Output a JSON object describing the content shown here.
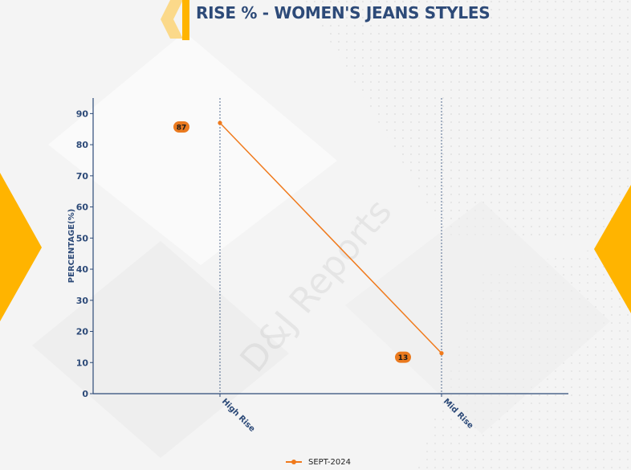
{
  "title": "RISE % - WOMEN'S JEANS STYLES",
  "watermark": "D&J Reports",
  "colors": {
    "title": "#2d4a78",
    "accent_yellow": "#ffb400",
    "accent_yellow_light": "#fbd98a",
    "series": "#f07a1c",
    "axis": "#2d4a78",
    "label_bubble": "#ea7a1f"
  },
  "chart_data": {
    "type": "line",
    "categories": [
      "High Rise",
      "Mid Rise"
    ],
    "series": [
      {
        "name": "SEPT-2024",
        "values": [
          87,
          13
        ],
        "data_labels": [
          "87",
          "13"
        ]
      }
    ],
    "xlabel": "",
    "ylabel": "PERCENTAGE(%)",
    "ylim": [
      0,
      95
    ],
    "yticks": [
      0,
      10,
      20,
      30,
      40,
      50,
      60,
      70,
      80,
      90
    ],
    "grid": "vertical dotted lines at categories",
    "legend": "bottom-center"
  }
}
